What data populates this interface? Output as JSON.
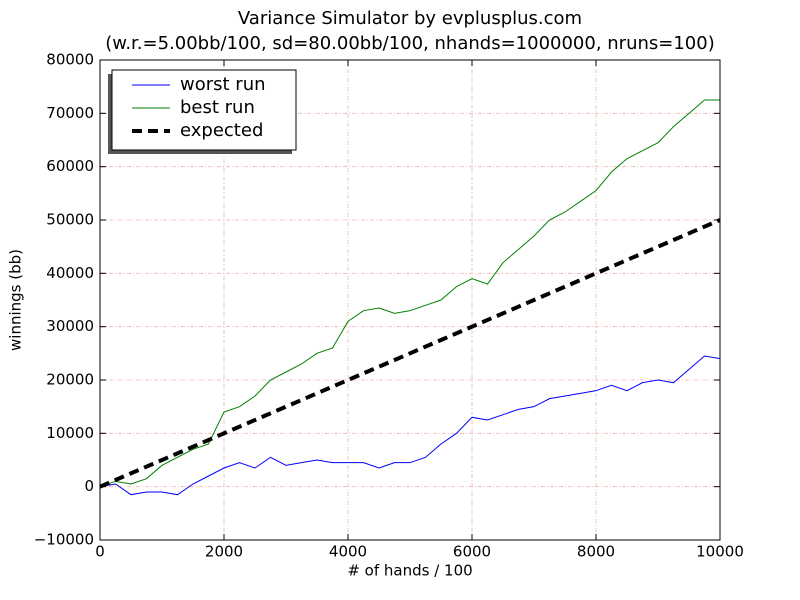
{
  "chart_data": {
    "type": "line",
    "title": "Variance Simulator by evplusplus.com",
    "subtitle": "(w.r.=5.00bb/100, sd=80.00bb/100, nhands=1000000, nruns=100)",
    "x_label": "# of hands / 100",
    "y_label": "winnings (bb)",
    "x": [
      0,
      250,
      500,
      750,
      1000,
      1250,
      1500,
      1750,
      2000,
      2250,
      2500,
      2750,
      3000,
      3250,
      3500,
      3750,
      4000,
      4250,
      4500,
      4750,
      5000,
      5250,
      5500,
      5750,
      6000,
      6250,
      6500,
      6750,
      7000,
      7250,
      7500,
      7750,
      8000,
      8250,
      8500,
      8750,
      9000,
      9250,
      9500,
      9750,
      10000
    ],
    "series": [
      {
        "name": "worst run",
        "color": "#0000ff",
        "dash": false,
        "values": [
          0,
          500,
          -1500,
          -1000,
          -1000,
          -1500,
          500,
          2000,
          3500,
          4500,
          3500,
          5500,
          4000,
          4500,
          5000,
          4500,
          4500,
          4500,
          3500,
          4500,
          4500,
          5500,
          8000,
          10000,
          13000,
          12500,
          13500,
          14500,
          15000,
          16500,
          17000,
          17500,
          18000,
          19000,
          18000,
          19500,
          20000,
          19500,
          22000,
          24500,
          24000
        ]
      },
      {
        "name": "best run",
        "color": "#008000",
        "dash": false,
        "values": [
          0,
          1000,
          500,
          1500,
          4000,
          5500,
          7000,
          8000,
          14000,
          15000,
          17000,
          20000,
          21500,
          23000,
          25000,
          26000,
          31000,
          33000,
          33500,
          32500,
          33000,
          34000,
          35000,
          37500,
          39000,
          38000,
          42000,
          44500,
          47000,
          50000,
          51500,
          53500,
          55500,
          59000,
          61500,
          63000,
          64500,
          67500,
          70000,
          72500,
          72500
        ]
      },
      {
        "name": "expected",
        "color": "#000000",
        "dash": true,
        "x": [
          0,
          10000
        ],
        "values": [
          0,
          50000
        ]
      }
    ],
    "xlim": [
      0,
      10000
    ],
    "xticks": [
      0,
      2000,
      4000,
      6000,
      8000,
      10000
    ],
    "ylim": [
      -10000,
      80000
    ],
    "yticks": [
      {
        "value": -10000,
        "label": "−10000"
      },
      0,
      10000,
      20000,
      30000,
      40000,
      50000,
      60000,
      70000,
      80000
    ],
    "grid": true,
    "legend": "upper-left"
  }
}
